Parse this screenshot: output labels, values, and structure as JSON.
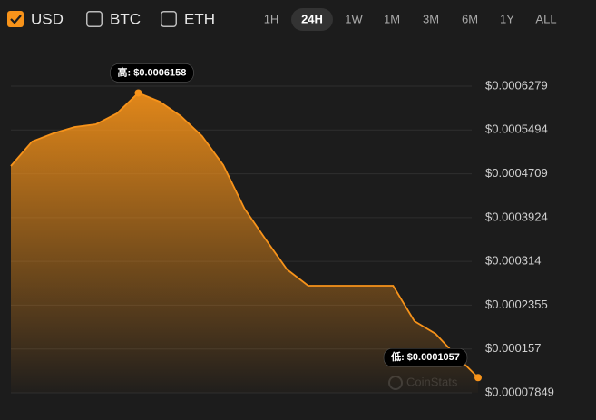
{
  "currencies": [
    {
      "label": "USD",
      "checked": true
    },
    {
      "label": "BTC",
      "checked": false
    },
    {
      "label": "ETH",
      "checked": false
    }
  ],
  "ranges": [
    "1H",
    "24H",
    "1W",
    "1M",
    "3M",
    "6M",
    "1Y",
    "ALL"
  ],
  "selected_range": "24H",
  "chart_data": {
    "type": "area",
    "series": [
      {
        "name": "USD",
        "color": "#f7931a",
        "values": [
          0.0004849,
          0.0005288,
          0.0005434,
          0.0005548,
          0.0005596,
          0.0005792,
          0.0006158,
          0.0006003,
          0.0005743,
          0.0005385,
          0.0004865,
          0.0004085,
          0.0003532,
          0.0002996,
          0.0002703,
          0.0002703,
          0.0002703,
          0.0002703,
          0.0002703,
          0.0002069,
          0.0001842,
          0.0001435,
          0.0001057
        ]
      }
    ],
    "ylim": [
      7.849e-05,
      0.0006279
    ],
    "yticks": [
      {
        "value": 7.849e-05,
        "label": "$0.00007849"
      },
      {
        "value": 0.000157,
        "label": "$0.000157"
      },
      {
        "value": 0.0002355,
        "label": "$0.0002355"
      },
      {
        "value": 0.000314,
        "label": "$0.000314"
      },
      {
        "value": 0.0003924,
        "label": "$0.0003924"
      },
      {
        "value": 0.0004709,
        "label": "$0.0004709"
      },
      {
        "value": 0.0005494,
        "label": "$0.0005494"
      },
      {
        "value": 0.0006279,
        "label": "$0.0006279"
      }
    ],
    "grid": true,
    "annotations": [
      {
        "label": "高: $0.0006158",
        "value": 0.0006158
      },
      {
        "label": "低: $0.0001057",
        "value": 0.0001057
      }
    ],
    "watermark": "CoinStats"
  }
}
